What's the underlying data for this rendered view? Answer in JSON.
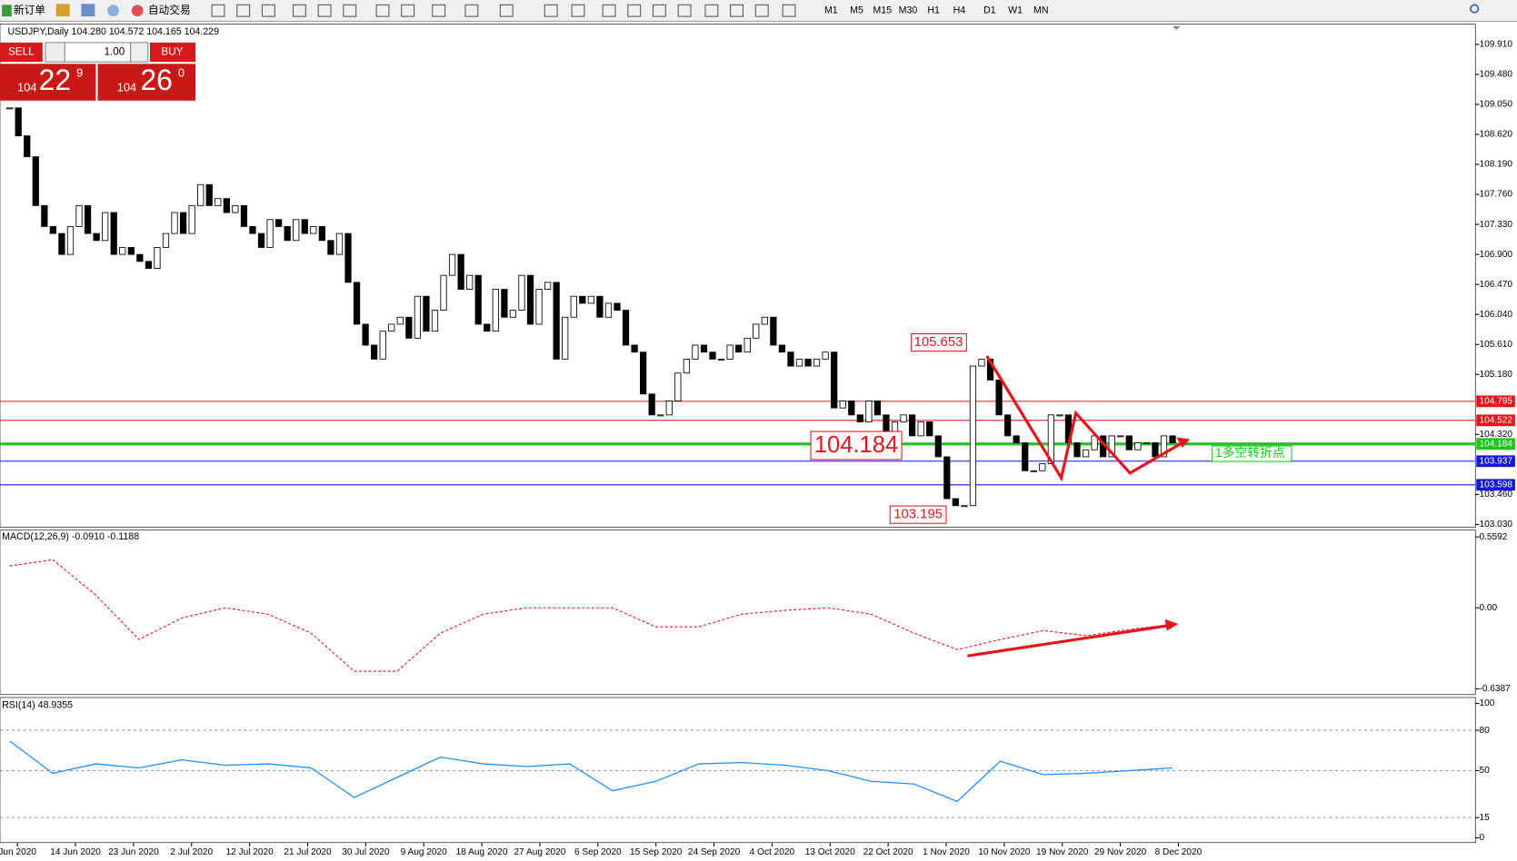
{
  "toolbar": {
    "new_order": "新订单",
    "auto_trading": "自动交易",
    "timeframes": [
      "M1",
      "M5",
      "M15",
      "M30",
      "H1",
      "H4",
      "D1",
      "W1",
      "MN"
    ]
  },
  "symbol_info": "USDJPY,Daily  104.280 104.572 104.165 104.229",
  "trade_panel": {
    "sell": "SELL",
    "buy": "BUY",
    "lots": "1.00",
    "sell_big": "104",
    "sell_mid": "22",
    "sell_sup": "9",
    "buy_big": "104",
    "buy_mid": "26",
    "buy_sup": "0"
  },
  "price_chart": {
    "ylim": [
      102.99,
      110.2
    ],
    "yticks": [
      {
        "value": 109.91,
        "label": "109.910"
      },
      {
        "value": 109.48,
        "label": "109.480"
      },
      {
        "value": 109.05,
        "label": "109.050"
      },
      {
        "value": 108.62,
        "label": "108.620"
      },
      {
        "value": 108.19,
        "label": "108.190"
      },
      {
        "value": 107.76,
        "label": "107.760"
      },
      {
        "value": 107.33,
        "label": "107.330"
      },
      {
        "value": 106.9,
        "label": "106.900"
      },
      {
        "value": 106.47,
        "label": "106.470"
      },
      {
        "value": 106.04,
        "label": "106.040"
      },
      {
        "value": 105.61,
        "label": "105.610"
      },
      {
        "value": 105.18,
        "label": "105.180"
      },
      {
        "value": 104.32,
        "label": "104.320"
      },
      {
        "value": 103.46,
        "label": "103.460"
      },
      {
        "value": 103.03,
        "label": "103.030"
      }
    ],
    "closes": [
      109.0,
      108.6,
      108.3,
      107.6,
      107.3,
      107.2,
      106.9,
      107.3,
      107.6,
      107.2,
      107.1,
      107.5,
      106.9,
      107.0,
      106.9,
      106.8,
      106.7,
      107.0,
      107.2,
      107.5,
      107.2,
      107.6,
      107.9,
      107.6,
      107.7,
      107.5,
      107.6,
      107.3,
      107.2,
      107.0,
      107.4,
      107.3,
      107.1,
      107.4,
      107.2,
      107.3,
      107.1,
      106.9,
      107.2,
      106.5,
      105.9,
      105.6,
      105.4,
      105.8,
      105.9,
      106.0,
      105.7,
      106.3,
      105.8,
      106.1,
      106.6,
      106.9,
      106.4,
      106.6,
      105.9,
      105.8,
      106.4,
      106.0,
      106.1,
      106.6,
      105.9,
      106.4,
      106.5,
      105.4,
      106.0,
      106.3,
      106.2,
      106.3,
      106.0,
      106.2,
      106.1,
      105.6,
      105.5,
      104.9,
      104.6,
      104.6,
      104.8,
      105.2,
      105.4,
      105.6,
      105.5,
      105.4,
      105.4,
      105.6,
      105.5,
      105.7,
      105.9,
      106.0,
      105.6,
      105.5,
      105.3,
      105.4,
      105.3,
      105.4,
      105.5,
      104.7,
      104.8,
      104.6,
      104.5,
      104.8,
      104.6,
      104.2,
      104.5,
      104.6,
      104.3,
      104.5,
      104.3,
      104.0,
      103.4,
      103.3,
      103.3,
      105.3,
      105.4,
      105.1,
      104.6,
      104.3,
      104.2,
      103.8,
      103.8,
      103.9,
      104.6,
      104.6,
      104.2,
      104.0,
      104.1,
      104.3,
      104.0,
      104.3,
      104.3,
      104.1,
      104.2,
      104.2,
      104.0,
      104.3,
      104.2
    ],
    "levels": [
      {
        "value": 104.795,
        "label": "104.795",
        "color": "#e8141c"
      },
      {
        "value": 104.522,
        "label": "104.522",
        "color": "#e8141c"
      },
      {
        "value": 104.184,
        "label": "104.184",
        "color": "#18c818"
      },
      {
        "value": 103.937,
        "label": "103.937",
        "color": "#1414e0"
      },
      {
        "value": 103.598,
        "label": "103.598",
        "color": "#1414e0"
      }
    ],
    "annotations": {
      "high": "105.653",
      "pivot": "104.184",
      "low": "103.195",
      "note": "1多空转折点"
    }
  },
  "macd": {
    "label": "MACD(12,26,9) -0.0910 -0.1188",
    "ylim": [
      -0.6845,
      0.6126
    ],
    "yticks": [
      {
        "value": 0.5592,
        "label": "0.5592"
      },
      {
        "value": 0,
        "label": "0.00"
      },
      {
        "value": -0.6387,
        "label": "-0.6387"
      }
    ],
    "signal": [
      0.33,
      0.38,
      0.1,
      -0.25,
      -0.08,
      0.0,
      -0.05,
      -0.2,
      -0.5,
      -0.5,
      -0.2,
      -0.05,
      0.0,
      0.0,
      0.0,
      -0.15,
      -0.15,
      -0.05,
      -0.02,
      0.0,
      -0.05,
      -0.2,
      -0.33,
      -0.25,
      -0.18,
      -0.22,
      -0.17,
      -0.13
    ]
  },
  "rsi": {
    "label": "RSI(14) 48.9355",
    "ylim": [
      -3.6,
      104.4
    ],
    "yticks": [
      100,
      80,
      50,
      15,
      0
    ],
    "levels": [
      80,
      50,
      15
    ],
    "values": [
      72,
      48,
      55,
      52,
      58,
      54,
      55,
      52,
      30,
      45,
      60,
      55,
      53,
      55,
      35,
      42,
      55,
      56,
      54,
      50,
      42,
      40,
      27,
      57,
      47,
      48,
      50,
      52
    ]
  },
  "dates": [
    "Jun 2020",
    "14 Jun 2020",
    "23 Jun 2020",
    "2 Jul 2020",
    "12 Jul 2020",
    "21 Jul 2020",
    "30 Jul 2020",
    "9 Aug 2020",
    "18 Aug 2020",
    "27 Aug 2020",
    "6 Sep 2020",
    "15 Sep 2020",
    "24 Sep 2020",
    "4 Oct 2020",
    "13 Oct 2020",
    "22 Oct 2020",
    "1 Nov 2020",
    "10 Nov 2020",
    "19 Nov 2020",
    "29 Nov 2020",
    "8 Dec 2020"
  ]
}
